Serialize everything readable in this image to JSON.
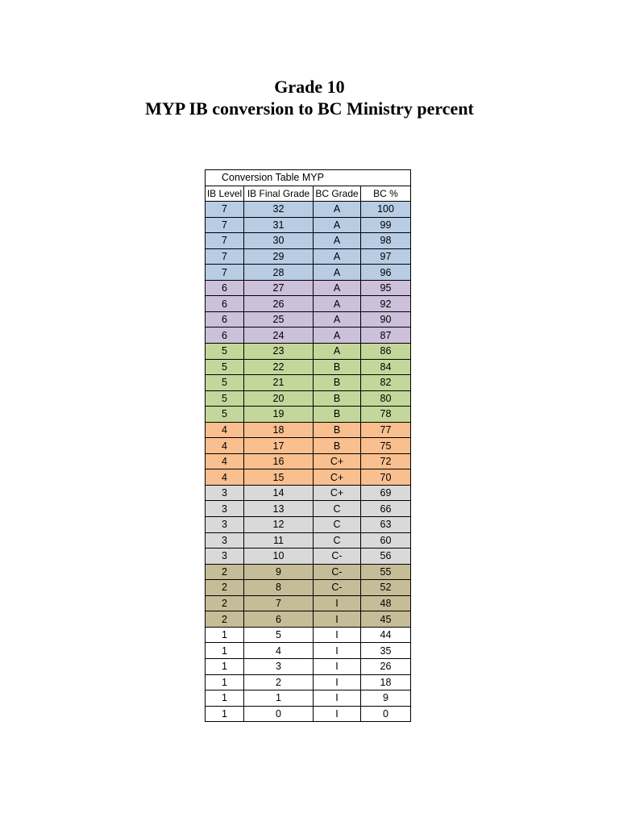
{
  "title_line1": "Grade 10",
  "title_line2": "MYP IB conversion to BC Ministry percent",
  "table": {
    "caption": "Conversion Table MYP",
    "headers": [
      "IB Level",
      "IB Final Grade",
      "BC Grade",
      "BC %"
    ],
    "level_colors": {
      "7": "#b8cce4",
      "6": "#ccc0da",
      "5": "#c4d79b",
      "4": "#fabf8f",
      "3": "#d9d9d9",
      "2": "#c4bd97",
      "1": "#ffffff"
    },
    "rows": [
      [
        "7",
        "32",
        "A",
        "100"
      ],
      [
        "7",
        "31",
        "A",
        "99"
      ],
      [
        "7",
        "30",
        "A",
        "98"
      ],
      [
        "7",
        "29",
        "A",
        "97"
      ],
      [
        "7",
        "28",
        "A",
        "96"
      ],
      [
        "6",
        "27",
        "A",
        "95"
      ],
      [
        "6",
        "26",
        "A",
        "92"
      ],
      [
        "6",
        "25",
        "A",
        "90"
      ],
      [
        "6",
        "24",
        "A",
        "87"
      ],
      [
        "5",
        "23",
        "A",
        "86"
      ],
      [
        "5",
        "22",
        "B",
        "84"
      ],
      [
        "5",
        "21",
        "B",
        "82"
      ],
      [
        "5",
        "20",
        "B",
        "80"
      ],
      [
        "5",
        "19",
        "B",
        "78"
      ],
      [
        "4",
        "18",
        "B",
        "77"
      ],
      [
        "4",
        "17",
        "B",
        "75"
      ],
      [
        "4",
        "16",
        "C+",
        "72"
      ],
      [
        "4",
        "15",
        "C+",
        "70"
      ],
      [
        "3",
        "14",
        "C+",
        "69"
      ],
      [
        "3",
        "13",
        "C",
        "66"
      ],
      [
        "3",
        "12",
        "C",
        "63"
      ],
      [
        "3",
        "11",
        "C",
        "60"
      ],
      [
        "3",
        "10",
        "C-",
        "56"
      ],
      [
        "2",
        "9",
        "C-",
        "55"
      ],
      [
        "2",
        "8",
        "C-",
        "52"
      ],
      [
        "2",
        "7",
        "I",
        "48"
      ],
      [
        "2",
        "6",
        "I",
        "45"
      ],
      [
        "1",
        "5",
        "I",
        "44"
      ],
      [
        "1",
        "4",
        "I",
        "35"
      ],
      [
        "1",
        "3",
        "I",
        "26"
      ],
      [
        "1",
        "2",
        "I",
        "18"
      ],
      [
        "1",
        "1",
        "I",
        "9"
      ],
      [
        "1",
        "0",
        "I",
        "0"
      ]
    ]
  }
}
